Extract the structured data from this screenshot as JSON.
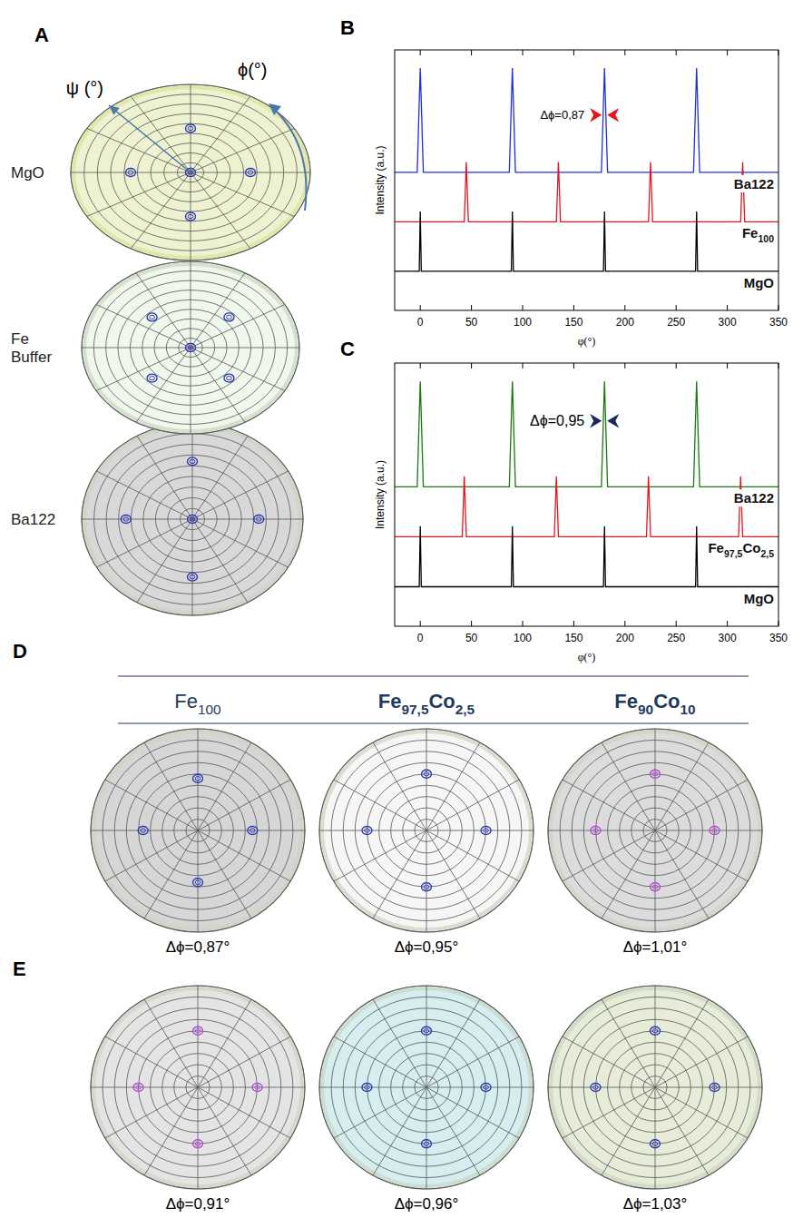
{
  "chart_data": [
    {
      "panel": "B",
      "type": "line",
      "x_label": "φ(°)",
      "y_label": "Intensity (a.u.)",
      "xlim": [
        -25,
        350
      ],
      "xticks": [
        0,
        50,
        100,
        150,
        200,
        250,
        300,
        350
      ],
      "ylim": [
        0,
        10
      ],
      "tick_labels": "x",
      "series": [
        {
          "name": "Ba122",
          "color": "#1f2fe0",
          "x": [
            -25,
            -3,
            0,
            3,
            87,
            90,
            93,
            177,
            180,
            183,
            267,
            270,
            273,
            350
          ],
          "values": [
            5.3,
            5.3,
            9.3,
            5.3,
            5.3,
            9.3,
            5.3,
            5.3,
            9.3,
            5.3,
            5.3,
            9.3,
            5.3,
            5.3
          ]
        },
        {
          "name": "Fe100",
          "color": "#e8141b",
          "x": [
            -25,
            43,
            45,
            47,
            133,
            135,
            137,
            223,
            225,
            227,
            313,
            315,
            317,
            350
          ],
          "values": [
            3.4,
            3.4,
            5.7,
            3.4,
            3.4,
            5.7,
            3.4,
            3.4,
            5.7,
            3.4,
            3.4,
            5.7,
            3.4,
            3.4
          ]
        },
        {
          "name": "MgO",
          "color": "#000000",
          "x": [
            -25,
            -1,
            0,
            1,
            89,
            90,
            91,
            179,
            180,
            181,
            269,
            270,
            271,
            350
          ],
          "values": [
            1.5,
            1.5,
            3.8,
            1.5,
            1.5,
            3.8,
            1.5,
            1.5,
            3.8,
            1.5,
            1.5,
            3.8,
            1.5,
            1.5
          ]
        }
      ],
      "annotation": {
        "text": "Δϕ=0,87",
        "x": 180,
        "y": 7.5,
        "color": "#e8141b"
      }
    },
    {
      "panel": "C",
      "type": "line",
      "x_label": "φ(°)",
      "y_label": "Intensity (a.u.)",
      "xlim": [
        -25,
        350
      ],
      "xticks": [
        0,
        50,
        100,
        150,
        200,
        250,
        300,
        350
      ],
      "ylim": [
        0,
        10
      ],
      "tick_labels": "x",
      "series": [
        {
          "name": "Ba122",
          "color": "#1a7a10",
          "x": [
            -25,
            -3,
            0,
            3,
            87,
            90,
            93,
            177,
            180,
            183,
            267,
            270,
            273,
            350
          ],
          "values": [
            5.3,
            5.3,
            9.3,
            5.3,
            5.3,
            9.3,
            5.3,
            5.3,
            9.3,
            5.3,
            5.3,
            9.3,
            5.3,
            5.3
          ]
        },
        {
          "name": "Fe97,5Co2,5",
          "color": "#e8141b",
          "x": [
            -25,
            41,
            43,
            45,
            131,
            133,
            135,
            221,
            223,
            225,
            311,
            313,
            315,
            350
          ],
          "values": [
            3.4,
            3.4,
            5.7,
            3.4,
            3.4,
            5.7,
            3.4,
            3.4,
            5.7,
            3.4,
            3.4,
            5.7,
            3.4,
            3.4
          ]
        },
        {
          "name": "MgO",
          "color": "#000000",
          "x": [
            -25,
            -1,
            0,
            1,
            89,
            90,
            91,
            179,
            180,
            181,
            269,
            270,
            271,
            350
          ],
          "values": [
            1.5,
            1.5,
            3.8,
            1.5,
            1.5,
            3.8,
            1.5,
            1.5,
            3.8,
            1.5,
            1.5,
            3.8,
            1.5,
            1.5
          ]
        }
      ],
      "annotation": {
        "text": "Δϕ=0,95",
        "x": 180,
        "y": 7.8,
        "color": "#1b2a5e"
      }
    }
  ],
  "pole_figures": {
    "panel": "A",
    "psi_label": "ψ (°)",
    "phi_label": "ϕ(°)",
    "psi_max": 90,
    "psi_grid": 10,
    "phi_grid": 30,
    "items": [
      {
        "label": "MgO",
        "fill": "#eef2d0",
        "spot_color": "#2d3bb3",
        "spots": [
          {
            "psi": 0,
            "phi": 0
          },
          {
            "psi": 45,
            "phi": 0
          },
          {
            "psi": 45,
            "phi": 90
          },
          {
            "psi": 45,
            "phi": 180
          },
          {
            "psi": 45,
            "phi": 270
          }
        ]
      },
      {
        "label": "Fe Buffer",
        "fill": "#f0f7ec",
        "spot_color": "#2d3bb3",
        "spots": [
          {
            "psi": 0,
            "phi": 0
          },
          {
            "psi": 45,
            "phi": 45
          },
          {
            "psi": 45,
            "phi": 135
          },
          {
            "psi": 45,
            "phi": 225
          },
          {
            "psi": 45,
            "phi": 315
          }
        ]
      },
      {
        "label": "Ba122",
        "fill": "#d8d8d8",
        "spot_color": "#2d3bb3",
        "spots": [
          {
            "psi": 0,
            "phi": 0
          },
          {
            "psi": 54,
            "phi": 0
          },
          {
            "psi": 54,
            "phi": 90
          },
          {
            "psi": 54,
            "phi": 180
          },
          {
            "psi": 54,
            "phi": 270
          }
        ]
      }
    ]
  },
  "comparison": {
    "panels": [
      "D",
      "E"
    ],
    "columns": [
      "Fe100",
      "Fe97,5Co2,5",
      "Fe90Co10"
    ],
    "rows": [
      [
        {
          "delta": "Δϕ=0,87°",
          "fill": "#d6d6d6",
          "spot_color": "#2d3bb3",
          "spots": [
            {
              "psi": 46,
              "phi": 0
            },
            {
              "psi": 46,
              "phi": 90
            },
            {
              "psi": 46,
              "phi": 180
            },
            {
              "psi": 46,
              "phi": 270
            }
          ]
        },
        {
          "delta": "Δϕ=0,95°",
          "fill": "#f6f6f6",
          "spot_color": "#2d3bb3",
          "spots": [
            {
              "psi": 50,
              "phi": 0
            },
            {
              "psi": 50,
              "phi": 90
            },
            {
              "psi": 50,
              "phi": 180
            },
            {
              "psi": 50,
              "phi": 270
            }
          ]
        },
        {
          "delta": "Δϕ=1,01°",
          "fill": "#dcdcdc",
          "spot_color": "#b04cd0",
          "spots": [
            {
              "psi": 50,
              "phi": 0
            },
            {
              "psi": 50,
              "phi": 90
            },
            {
              "psi": 50,
              "phi": 180
            },
            {
              "psi": 50,
              "phi": 270
            }
          ]
        }
      ],
      [
        {
          "delta": "Δϕ=0,91°",
          "fill": "#e4e4e4",
          "spot_color": "#b04cd0",
          "spots": [
            {
              "psi": 50,
              "phi": 0
            },
            {
              "psi": 50,
              "phi": 90
            },
            {
              "psi": 50,
              "phi": 180
            },
            {
              "psi": 50,
              "phi": 270
            }
          ]
        },
        {
          "delta": "Δϕ=0,96°",
          "fill": "#d6eef0",
          "spot_color": "#2d3bb3",
          "spots": [
            {
              "psi": 50,
              "phi": 0
            },
            {
              "psi": 50,
              "phi": 90
            },
            {
              "psi": 50,
              "phi": 180
            },
            {
              "psi": 50,
              "phi": 270
            }
          ]
        },
        {
          "delta": "Δϕ=1,03°",
          "fill": "#e6ecd8",
          "spot_color": "#2d3bb3",
          "spots": [
            {
              "psi": 50,
              "phi": 0
            },
            {
              "psi": 50,
              "phi": 90
            },
            {
              "psi": 50,
              "phi": 180
            },
            {
              "psi": 50,
              "phi": 270
            }
          ]
        }
      ]
    ]
  }
}
